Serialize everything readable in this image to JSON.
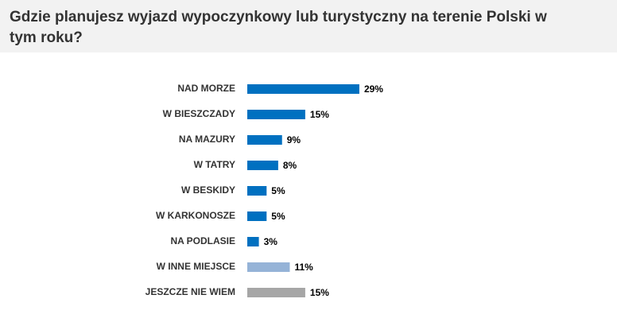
{
  "chart_data": {
    "type": "bar",
    "orientation": "horizontal",
    "title": "Gdzie planujesz wyjazd wypoczynkowy lub turystyczny na terenie Polski w tym roku?",
    "categories": [
      "NAD MORZE",
      "W BIESZCZADY",
      "NA MAZURY",
      "W TATRY",
      "W BESKIDY",
      "W KARKONOSZE",
      "NA PODLASIE",
      "W INNE MIEJSCE",
      "JESZCZE NIE WIEM"
    ],
    "values": [
      29,
      15,
      9,
      8,
      5,
      5,
      3,
      11,
      15
    ],
    "value_labels": [
      "29%",
      "15%",
      "9%",
      "8%",
      "5%",
      "5%",
      "3%",
      "11%",
      "15%"
    ],
    "colors": [
      "#0070c0",
      "#0070c0",
      "#0070c0",
      "#0070c0",
      "#0070c0",
      "#0070c0",
      "#0070c0",
      "#95b3d7",
      "#a6a6a6"
    ]
  }
}
